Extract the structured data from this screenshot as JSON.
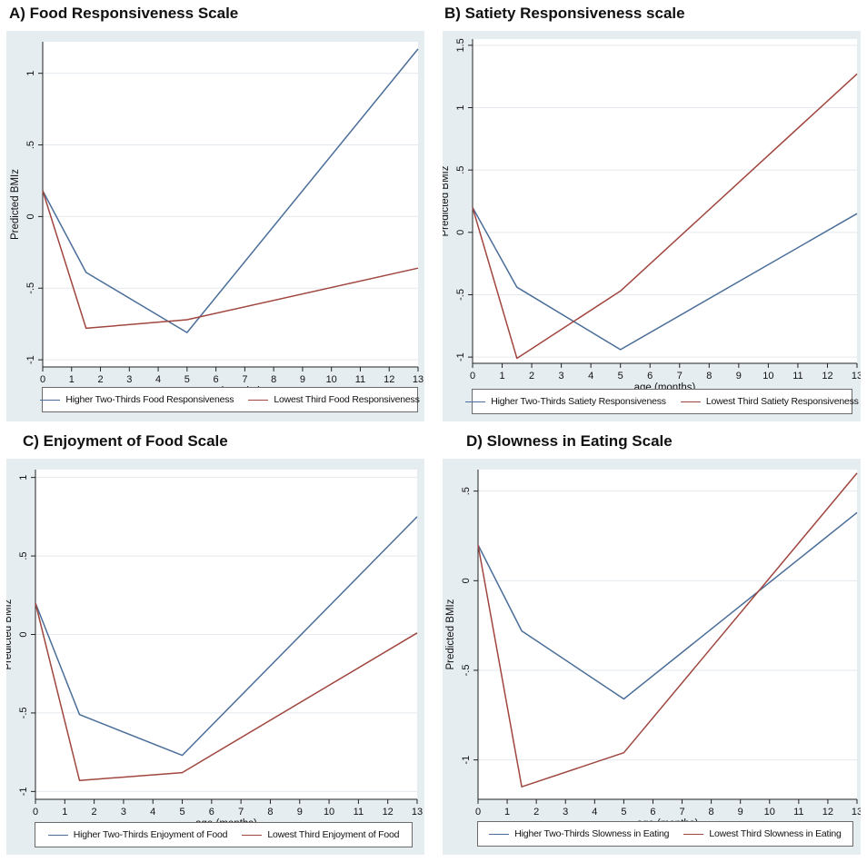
{
  "colors": {
    "series_a": "#4a6e99",
    "series_b": "#a0463f",
    "plot_region_bg": "#e6edf1",
    "plot_bg": "#ffffff",
    "grid": "#e3e9ee"
  },
  "chart_data": [
    {
      "id": "A",
      "type": "line",
      "title": "A) Food Responsiveness Scale",
      "xlabel": "age (months)",
      "ylabel": "Predicted BMIz",
      "xlim": [
        0,
        13
      ],
      "ylim": [
        -1.05,
        1.22
      ],
      "x_ticks": [
        0,
        1,
        2,
        3,
        4,
        5,
        6,
        7,
        8,
        9,
        10,
        11,
        12,
        13
      ],
      "x_tick_labels": [
        "0",
        "1",
        "2",
        "3",
        "4",
        "5",
        "6",
        "7",
        "8",
        "9",
        "10",
        "11",
        "12",
        "13"
      ],
      "y_ticks": [
        -1,
        -0.5,
        0,
        0.5,
        1
      ],
      "y_tick_labels": [
        "-1",
        "-.5",
        "0",
        ".5",
        "1"
      ],
      "grid": true,
      "legend_position": "bottom",
      "series": [
        {
          "name": "Higher Two-Thirds Food Responsiveness",
          "x": [
            0,
            1.5,
            5,
            13
          ],
          "y": [
            0.18,
            -0.39,
            -0.81,
            1.17
          ]
        },
        {
          "name": "Lowest Third Food Responsiveness",
          "x": [
            0,
            1.5,
            5,
            13
          ],
          "y": [
            0.18,
            -0.78,
            -0.72,
            -0.36
          ]
        }
      ]
    },
    {
      "id": "B",
      "type": "line",
      "title": "B) Satiety Responsiveness scale",
      "xlabel": "age (months)",
      "ylabel": "Predicted BMIz",
      "xlim": [
        0,
        13
      ],
      "ylim": [
        -1.05,
        1.55
      ],
      "x_ticks": [
        0,
        1,
        2,
        3,
        4,
        5,
        6,
        7,
        8,
        9,
        10,
        11,
        12,
        13
      ],
      "x_tick_labels": [
        "0",
        "1",
        "2",
        "3",
        "4",
        "5",
        "6",
        "7",
        "8",
        "9",
        "10",
        "11",
        "12",
        "13"
      ],
      "y_ticks": [
        -1,
        -0.5,
        0,
        0.5,
        1,
        1.5
      ],
      "y_tick_labels": [
        "-1",
        "-.5",
        "0",
        ".5",
        "1",
        "1.5"
      ],
      "grid": true,
      "legend_position": "bottom",
      "series": [
        {
          "name": "Higher Two-Thirds Satiety Responsiveness",
          "x": [
            0,
            1.5,
            5,
            13
          ],
          "y": [
            0.2,
            -0.44,
            -0.94,
            0.15
          ]
        },
        {
          "name": "Lowest Third Satiety Responsiveness",
          "x": [
            0,
            1.5,
            5,
            13
          ],
          "y": [
            0.2,
            -1.01,
            -0.47,
            1.27
          ]
        }
      ]
    },
    {
      "id": "C",
      "type": "line",
      "title": "C) Enjoyment of Food Scale",
      "xlabel": "age (months)",
      "ylabel": "Predicted BMIz",
      "xlim": [
        0,
        13
      ],
      "ylim": [
        -1.05,
        1.05
      ],
      "x_ticks": [
        0,
        1,
        2,
        3,
        4,
        5,
        6,
        7,
        8,
        9,
        10,
        11,
        12,
        13
      ],
      "x_tick_labels": [
        "0",
        "1",
        "2",
        "3",
        "4",
        "5",
        "6",
        "7",
        "8",
        "9",
        "10",
        "11",
        "12",
        "13"
      ],
      "y_ticks": [
        -1,
        -0.5,
        0,
        0.5,
        1
      ],
      "y_tick_labels": [
        "-1",
        "-.5",
        "0",
        ".5",
        "1"
      ],
      "grid": true,
      "legend_position": "bottom",
      "series": [
        {
          "name": "Higher Two-Thirds Enjoyment of Food",
          "x": [
            0,
            1.5,
            5,
            13
          ],
          "y": [
            0.2,
            -0.51,
            -0.77,
            0.75
          ]
        },
        {
          "name": "Lowest Third Enjoyment of Food",
          "x": [
            0,
            1.5,
            5,
            13
          ],
          "y": [
            0.2,
            -0.93,
            -0.88,
            0.01
          ]
        }
      ]
    },
    {
      "id": "D",
      "type": "line",
      "title": "D) Slowness in Eating Scale",
      "xlabel": "age (months)",
      "ylabel": "Predicted BMIz",
      "xlim": [
        0,
        13
      ],
      "ylim": [
        -1.22,
        0.62
      ],
      "x_ticks": [
        0,
        1,
        2,
        3,
        4,
        5,
        6,
        7,
        8,
        9,
        10,
        11,
        12,
        13
      ],
      "x_tick_labels": [
        "0",
        "1",
        "2",
        "3",
        "4",
        "5",
        "6",
        "7",
        "8",
        "9",
        "10",
        "11",
        "12",
        "13"
      ],
      "y_ticks": [
        -1,
        -0.5,
        0,
        0.5
      ],
      "y_tick_labels": [
        "-1",
        "-.5",
        "0",
        ".5"
      ],
      "grid": true,
      "legend_position": "bottom",
      "series": [
        {
          "name": "Higher Two-Thirds Slowness in Eating",
          "x": [
            0,
            1.5,
            5,
            13
          ],
          "y": [
            0.2,
            -0.28,
            -0.66,
            0.38
          ]
        },
        {
          "name": "Lowest Third Slowness in Eating",
          "x": [
            0,
            1.5,
            5,
            13
          ],
          "y": [
            0.2,
            -1.15,
            -0.96,
            0.6
          ]
        }
      ]
    }
  ]
}
